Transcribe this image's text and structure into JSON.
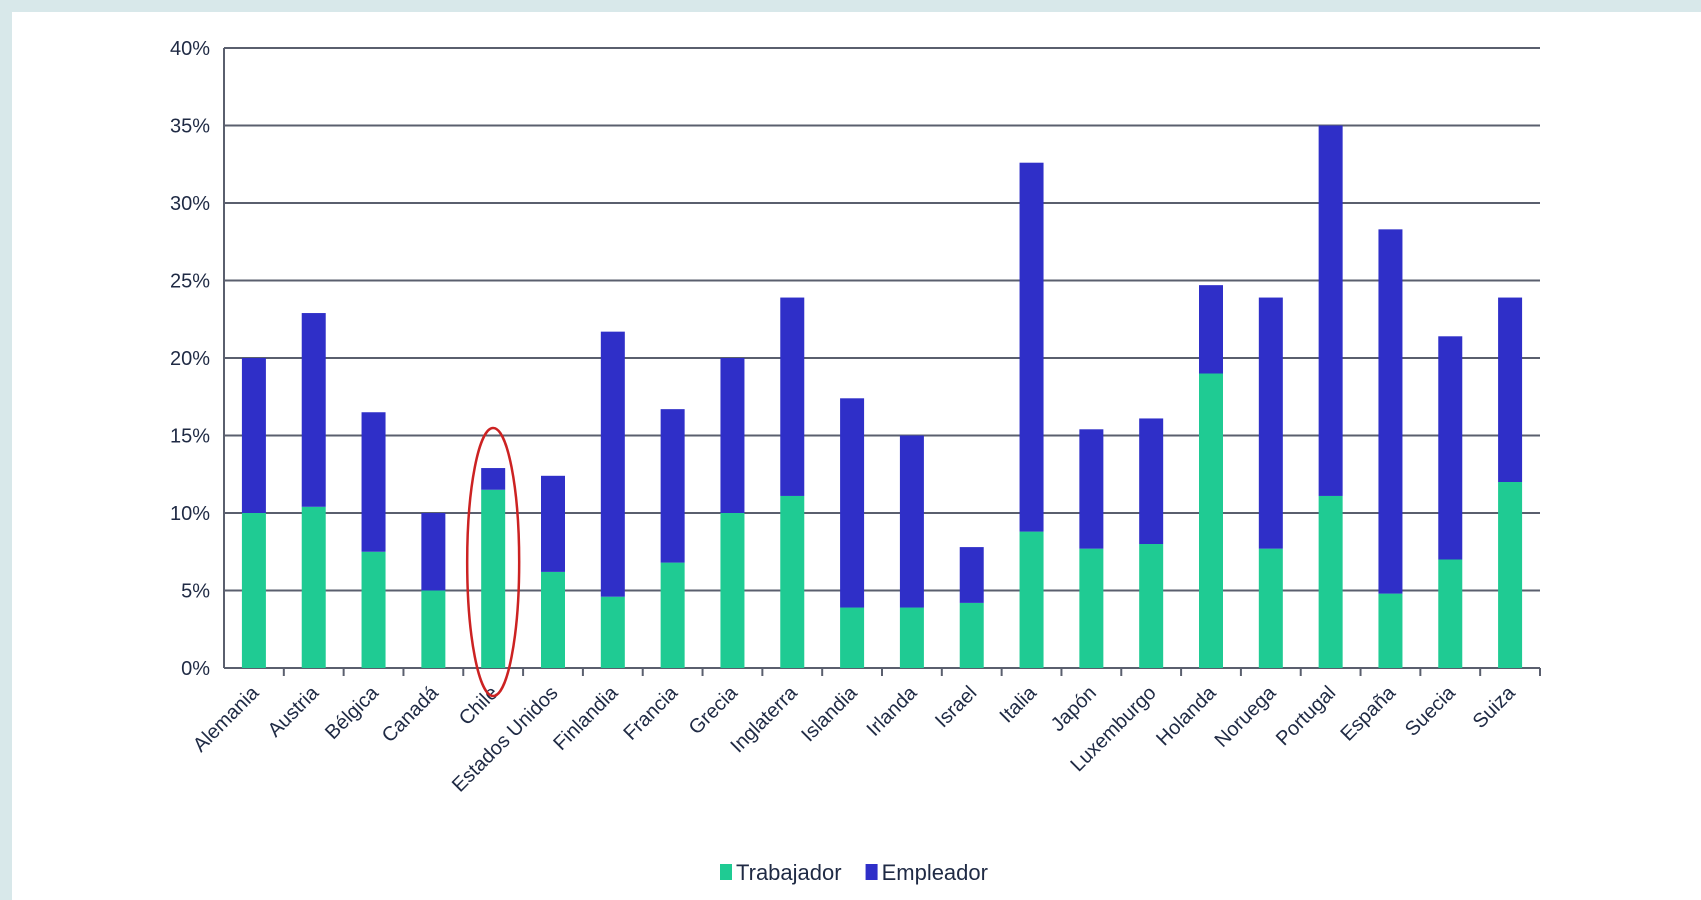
{
  "chart_data": {
    "type": "bar",
    "stacked": true,
    "categories": [
      "Alemania",
      "Austria",
      "Bélgica",
      "Canadá",
      "Chile",
      "Estados Unidos",
      "Finlandia",
      "Francia",
      "Grecia",
      "Inglaterra",
      "Islandia",
      "Irlanda",
      "Israel",
      "Italia",
      "Japón",
      "Luxemburgo",
      "Holanda",
      "Noruega",
      "Portugal",
      "España",
      "Suecia",
      "Suiza"
    ],
    "series": [
      {
        "name": "Trabajador",
        "color": "#1fcb93",
        "values": [
          10.0,
          10.4,
          7.5,
          5.0,
          11.5,
          6.2,
          4.6,
          6.8,
          10.0,
          11.1,
          3.9,
          3.9,
          4.2,
          8.8,
          7.7,
          8.0,
          19.0,
          7.7,
          11.1,
          4.8,
          7.0,
          12.0
        ]
      },
      {
        "name": "Empleador",
        "color": "#2f2fc8",
        "values": [
          10.0,
          12.5,
          9.0,
          5.0,
          1.4,
          6.2,
          17.1,
          9.9,
          10.0,
          12.8,
          13.5,
          11.1,
          3.6,
          23.8,
          7.7,
          8.1,
          5.7,
          16.2,
          23.9,
          23.5,
          14.4,
          11.9
        ]
      }
    ],
    "ylim": [
      0,
      40
    ],
    "yticks": [
      "0%",
      "5%",
      "10%",
      "15%",
      "20%",
      "25%",
      "30%",
      "35%",
      "40%"
    ],
    "grid": true,
    "legend_position": "bottom",
    "highlight": {
      "category": "Chile",
      "shape": "ellipse",
      "color": "#cc2222"
    }
  }
}
